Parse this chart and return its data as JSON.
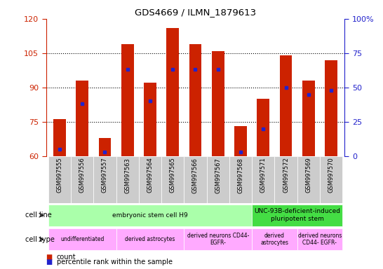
{
  "title": "GDS4669 / ILMN_1879613",
  "samples": [
    "GSM997555",
    "GSM997556",
    "GSM997557",
    "GSM997563",
    "GSM997564",
    "GSM997565",
    "GSM997566",
    "GSM997567",
    "GSM997568",
    "GSM997571",
    "GSM997572",
    "GSM997569",
    "GSM997570"
  ],
  "counts": [
    76,
    93,
    68,
    109,
    92,
    116,
    109,
    106,
    73,
    85,
    104,
    93,
    102
  ],
  "percentile_ranks": [
    5,
    38,
    3,
    63,
    40,
    63,
    63,
    63,
    3,
    20,
    50,
    45,
    48
  ],
  "ymin": 60,
  "ymax": 120,
  "yticks_left": [
    60,
    75,
    90,
    105,
    120
  ],
  "yticks_right": [
    0,
    25,
    50,
    75,
    100
  ],
  "bar_color": "#cc2200",
  "marker_color": "#2222cc",
  "bar_width": 0.55,
  "cell_line_groups": [
    {
      "label": "embryonic stem cell H9",
      "start": 0,
      "end": 9,
      "color": "#aaffaa"
    },
    {
      "label": "UNC-93B-deficient-induced\npluripotent stem",
      "start": 9,
      "end": 13,
      "color": "#44dd44"
    }
  ],
  "cell_type_groups": [
    {
      "label": "undifferentiated",
      "start": 0,
      "end": 3,
      "color": "#ffaaff"
    },
    {
      "label": "derived astrocytes",
      "start": 3,
      "end": 6,
      "color": "#ffaaff"
    },
    {
      "label": "derived neurons CD44-\nEGFR-",
      "start": 6,
      "end": 9,
      "color": "#ffaaff"
    },
    {
      "label": "derived\nastrocytes",
      "start": 9,
      "end": 11,
      "color": "#ffaaff"
    },
    {
      "label": "derived neurons\nCD44- EGFR-",
      "start": 11,
      "end": 13,
      "color": "#ffaaff"
    }
  ],
  "legend_count_label": "count",
  "legend_pct_label": "percentile rank within the sample",
  "bar_red": "#cc2200",
  "marker_blue": "#2222cc",
  "xlabel_box_color": "#cccccc",
  "left_label_color": "#333333",
  "grid_lines": [
    75,
    90,
    105
  ]
}
